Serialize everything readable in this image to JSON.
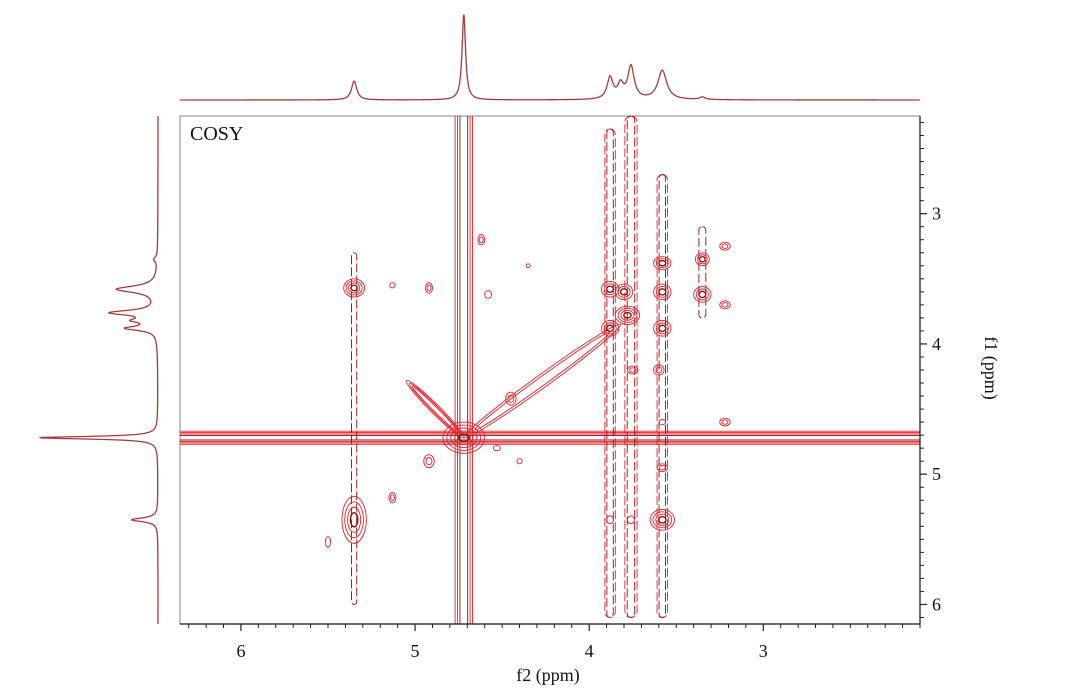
{
  "chart_data": {
    "type": "contour",
    "title": "COSY",
    "xlabel": "f2 (ppm)",
    "ylabel": "f1 (ppm)",
    "xlim": [
      6.35,
      2.1
    ],
    "ylim": [
      2.25,
      6.15
    ],
    "x_ticks": [
      "6",
      "5",
      "4",
      "3"
    ],
    "y_ticks": [
      "3",
      "4",
      "5",
      "6"
    ],
    "grid": false,
    "colors": {
      "contour": "#e8202a",
      "contour_core": "#8a1010",
      "projection": "#a83a3a",
      "frame": "#999999"
    },
    "projection_peaks": [
      {
        "ppm": 5.35,
        "height": 0.22,
        "width": 0.018
      },
      {
        "ppm": 4.72,
        "height": 1.0,
        "width": 0.012
      },
      {
        "ppm": 3.88,
        "height": 0.25,
        "width": 0.02
      },
      {
        "ppm": 3.82,
        "height": 0.16,
        "width": 0.02
      },
      {
        "ppm": 3.76,
        "height": 0.38,
        "width": 0.022
      },
      {
        "ppm": 3.58,
        "height": 0.34,
        "width": 0.03
      },
      {
        "ppm": 3.35,
        "height": 0.03,
        "width": 0.02
      }
    ],
    "peaks": [
      {
        "f2": 5.35,
        "f1": 3.57,
        "rx": 0.06,
        "ry": 0.07,
        "levels": 4
      },
      {
        "f2": 5.35,
        "f1": 5.35,
        "rx": 0.07,
        "ry": 0.18,
        "levels": 4
      },
      {
        "f2": 4.72,
        "f1": 4.72,
        "rx": 0.12,
        "ry": 0.12,
        "levels": 5
      },
      {
        "f2": 3.88,
        "f1": 3.58,
        "rx": 0.05,
        "ry": 0.06,
        "levels": 3
      },
      {
        "f2": 3.78,
        "f1": 3.78,
        "rx": 0.07,
        "ry": 0.07,
        "levels": 4
      },
      {
        "f2": 3.8,
        "f1": 3.6,
        "rx": 0.05,
        "ry": 0.06,
        "levels": 3
      },
      {
        "f2": 3.58,
        "f1": 3.6,
        "rx": 0.05,
        "ry": 0.06,
        "levels": 3
      },
      {
        "f2": 3.58,
        "f1": 3.88,
        "rx": 0.05,
        "ry": 0.06,
        "levels": 3
      },
      {
        "f2": 3.58,
        "f1": 3.38,
        "rx": 0.05,
        "ry": 0.05,
        "levels": 3
      },
      {
        "f2": 3.35,
        "f1": 3.62,
        "rx": 0.05,
        "ry": 0.06,
        "levels": 3
      },
      {
        "f2": 3.35,
        "f1": 3.35,
        "rx": 0.04,
        "ry": 0.05,
        "levels": 3
      },
      {
        "f2": 3.88,
        "f1": 3.88,
        "rx": 0.05,
        "ry": 0.06,
        "levels": 3
      },
      {
        "f2": 3.58,
        "f1": 5.35,
        "rx": 0.07,
        "ry": 0.08,
        "levels": 4
      },
      {
        "f2": 3.88,
        "f1": 5.35,
        "rx": 0.02,
        "ry": 0.03,
        "levels": 1
      },
      {
        "f2": 3.76,
        "f1": 5.35,
        "rx": 0.02,
        "ry": 0.03,
        "levels": 1
      },
      {
        "f2": 3.58,
        "f1": 4.95,
        "rx": 0.03,
        "ry": 0.03,
        "levels": 2
      },
      {
        "f2": 3.58,
        "f1": 4.6,
        "rx": 0.02,
        "ry": 0.02,
        "levels": 1
      },
      {
        "f2": 3.22,
        "f1": 3.7,
        "rx": 0.03,
        "ry": 0.03,
        "levels": 2
      },
      {
        "f2": 3.22,
        "f1": 3.25,
        "rx": 0.03,
        "ry": 0.03,
        "levels": 2
      },
      {
        "f2": 3.22,
        "f1": 4.6,
        "rx": 0.03,
        "ry": 0.03,
        "levels": 2
      },
      {
        "f2": 3.75,
        "f1": 4.2,
        "rx": 0.03,
        "ry": 0.03,
        "levels": 2
      },
      {
        "f2": 3.6,
        "f1": 4.2,
        "rx": 0.03,
        "ry": 0.04,
        "levels": 2
      },
      {
        "f2": 4.62,
        "f1": 3.2,
        "rx": 0.02,
        "ry": 0.04,
        "levels": 2
      },
      {
        "f2": 4.92,
        "f1": 3.57,
        "rx": 0.02,
        "ry": 0.04,
        "levels": 2
      },
      {
        "f2": 4.58,
        "f1": 3.62,
        "rx": 0.02,
        "ry": 0.03,
        "levels": 1
      },
      {
        "f2": 5.13,
        "f1": 3.55,
        "rx": 0.015,
        "ry": 0.02,
        "levels": 1
      },
      {
        "f2": 4.92,
        "f1": 4.9,
        "rx": 0.03,
        "ry": 0.05,
        "levels": 2
      },
      {
        "f2": 5.13,
        "f1": 5.18,
        "rx": 0.02,
        "ry": 0.04,
        "levels": 2
      },
      {
        "f2": 5.5,
        "f1": 5.52,
        "rx": 0.015,
        "ry": 0.04,
        "levels": 1
      },
      {
        "f2": 4.45,
        "f1": 4.42,
        "rx": 0.03,
        "ry": 0.05,
        "levels": 2
      },
      {
        "f2": 4.53,
        "f1": 4.8,
        "rx": 0.02,
        "ry": 0.02,
        "levels": 1
      },
      {
        "f2": 4.4,
        "f1": 4.9,
        "rx": 0.015,
        "ry": 0.02,
        "levels": 1
      },
      {
        "f2": 4.35,
        "f1": 3.4,
        "rx": 0.012,
        "ry": 0.015,
        "levels": 1
      }
    ],
    "ridges": [
      {
        "from": [
          4.72,
          4.72
        ],
        "to": [
          3.82,
          3.85
        ],
        "width": 0.05,
        "levels": 2
      },
      {
        "from": [
          4.72,
          4.72
        ],
        "to": [
          5.05,
          4.28
        ],
        "width": 0.035,
        "levels": 3
      }
    ],
    "streaks": [
      {
        "orientation": "vertical",
        "ppm": 4.72,
        "width": 0.05,
        "levels": 3
      },
      {
        "orientation": "horizontal",
        "ppm": 4.72,
        "width": 0.05,
        "levels": 4
      },
      {
        "orientation": "vertical",
        "ppm": 5.35,
        "from": 3.3,
        "to": 6.0,
        "width": 0.015,
        "levels": 1
      },
      {
        "orientation": "vertical",
        "ppm": 3.88,
        "from": 2.35,
        "to": 6.1,
        "width": 0.03,
        "levels": 2
      },
      {
        "orientation": "vertical",
        "ppm": 3.76,
        "from": 2.25,
        "to": 6.1,
        "width": 0.035,
        "levels": 2
      },
      {
        "orientation": "vertical",
        "ppm": 3.58,
        "from": 2.7,
        "to": 6.1,
        "width": 0.03,
        "levels": 2
      },
      {
        "orientation": "vertical",
        "ppm": 3.35,
        "from": 3.1,
        "to": 3.8,
        "width": 0.02,
        "levels": 1
      }
    ]
  }
}
